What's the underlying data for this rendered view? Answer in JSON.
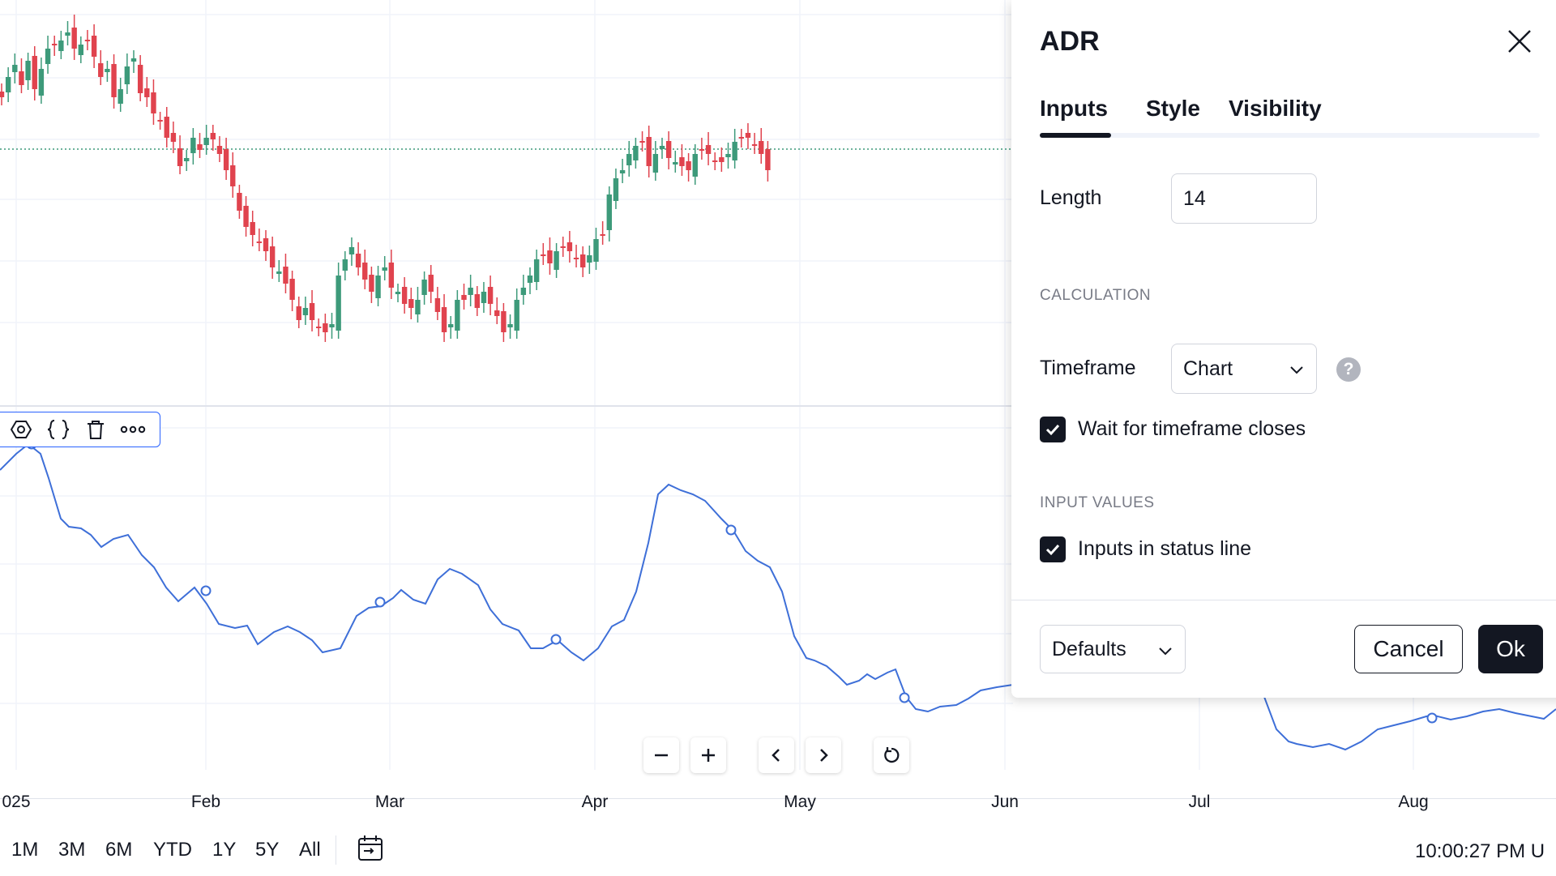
{
  "colors": {
    "up": "#3d9a7a",
    "down": "#e0434e",
    "indicator_line": "#3e6fd8",
    "grid": "#f0f3fa",
    "accent": "#2962ff",
    "text": "#131722",
    "muted": "#787b86"
  },
  "chart": {
    "time_axis_labels": [
      "025",
      "Feb",
      "Mar",
      "Apr",
      "May",
      "Jun",
      "Jul",
      "Aug"
    ],
    "current_price_line": "dotted green"
  },
  "pane_toolbar": {
    "icons": [
      "settings-icon",
      "source-code-icon",
      "trash-icon",
      "more-icon"
    ]
  },
  "zoom_controls": {
    "icons": [
      "zoom-out-icon",
      "zoom-in-icon",
      "scroll-left-icon",
      "scroll-right-icon",
      "reset-icon"
    ]
  },
  "bottom_bar": {
    "ranges": [
      "1M",
      "3M",
      "6M",
      "YTD",
      "1Y",
      "5Y",
      "All"
    ],
    "calendar_icon": "calendar-goto-icon",
    "clock": "10:00:27 PM U"
  },
  "dialog": {
    "title": "ADR",
    "close_icon": "close-icon",
    "tabs": [
      "Inputs",
      "Style",
      "Visibility"
    ],
    "active_tab": "Inputs",
    "length_label": "Length",
    "length_value": "14",
    "section_calculation": "CALCULATION",
    "timeframe_label": "Timeframe",
    "timeframe_value": "Chart",
    "help_icon": "help-icon",
    "help_glyph": "?",
    "wait_label": "Wait for timeframe closes",
    "wait_checked": true,
    "section_input_values": "INPUT VALUES",
    "inputs_status_label": "Inputs in status line",
    "inputs_status_checked": true,
    "defaults_label": "Defaults",
    "cancel_label": "Cancel",
    "ok_label": "Ok"
  }
}
